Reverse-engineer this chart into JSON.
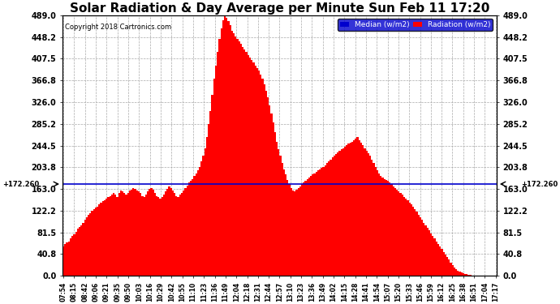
{
  "title": "Solar Radiation & Day Average per Minute Sun Feb 11 17:20",
  "copyright": "Copyright 2018 Cartronics.com",
  "yticks": [
    0.0,
    40.8,
    81.5,
    122.2,
    163.0,
    203.8,
    244.5,
    285.2,
    326.0,
    366.8,
    407.5,
    448.2,
    489.0
  ],
  "median_value": 172.26,
  "ymax": 489.0,
  "ymin": 0.0,
  "bar_color": "#FF0000",
  "median_color": "#0000CD",
  "background_color": "#FFFFFF",
  "plot_bg_color": "#FFFFFF",
  "grid_color": "#AAAAAA",
  "title_fontsize": 11,
  "legend_median_color": "#0000CD",
  "legend_radiation_color": "#FF0000",
  "xtick_labels": [
    "07:54",
    "08:15",
    "08:42",
    "09:06",
    "09:21",
    "09:35",
    "09:50",
    "10:03",
    "10:16",
    "10:29",
    "10:42",
    "10:55",
    "11:10",
    "11:23",
    "11:36",
    "11:49",
    "12:04",
    "12:18",
    "12:31",
    "12:44",
    "12:57",
    "13:10",
    "13:23",
    "13:36",
    "13:49",
    "14:02",
    "14:15",
    "14:28",
    "14:41",
    "14:54",
    "15:07",
    "15:20",
    "15:33",
    "15:46",
    "15:59",
    "16:12",
    "16:25",
    "16:38",
    "16:51",
    "17:04",
    "17:17"
  ],
  "radiation_values": [
    55,
    60,
    62,
    65,
    70,
    75,
    78,
    82,
    88,
    92,
    95,
    100,
    105,
    110,
    115,
    118,
    122,
    125,
    128,
    130,
    135,
    138,
    140,
    142,
    145,
    148,
    150,
    153,
    155,
    153,
    148,
    155,
    160,
    158,
    155,
    152,
    155,
    160,
    162,
    165,
    163,
    160,
    158,
    155,
    150,
    148,
    152,
    158,
    163,
    165,
    162,
    155,
    150,
    148,
    145,
    148,
    152,
    158,
    163,
    168,
    165,
    160,
    155,
    150,
    148,
    152,
    155,
    160,
    165,
    170,
    175,
    178,
    182,
    188,
    192,
    198,
    205,
    215,
    225,
    240,
    260,
    285,
    310,
    340,
    370,
    395,
    420,
    445,
    465,
    480,
    489,
    485,
    478,
    470,
    460,
    455,
    450,
    445,
    440,
    435,
    430,
    425,
    420,
    415,
    410,
    405,
    400,
    395,
    390,
    385,
    378,
    370,
    360,
    348,
    335,
    320,
    305,
    288,
    270,
    252,
    238,
    225,
    212,
    200,
    190,
    180,
    172,
    165,
    160,
    158,
    162,
    165,
    168,
    172,
    175,
    178,
    182,
    185,
    188,
    190,
    192,
    195,
    198,
    200,
    202,
    205,
    208,
    212,
    215,
    218,
    222,
    225,
    228,
    232,
    235,
    238,
    240,
    242,
    245,
    248,
    250,
    252,
    255,
    258,
    260,
    255,
    250,
    245,
    240,
    235,
    230,
    225,
    218,
    212,
    205,
    198,
    192,
    188,
    185,
    182,
    180,
    178,
    175,
    172,
    168,
    165,
    162,
    158,
    155,
    152,
    148,
    145,
    142,
    138,
    135,
    130,
    125,
    120,
    115,
    110,
    105,
    100,
    95,
    90,
    85,
    80,
    75,
    70,
    65,
    60,
    55,
    50,
    45,
    40,
    35,
    30,
    25,
    20,
    15,
    12,
    10,
    8,
    6,
    5,
    4,
    3,
    2,
    2,
    1,
    1,
    1,
    1,
    1,
    0,
    0,
    0,
    0,
    0,
    0,
    0,
    0,
    0
  ]
}
